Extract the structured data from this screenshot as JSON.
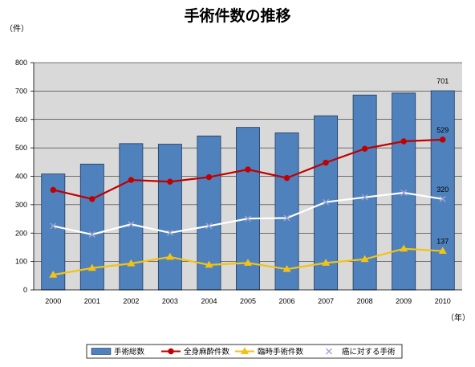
{
  "chart_data": {
    "type": "bar",
    "title": "手術件数の推移",
    "ylabel": "（件）",
    "xlabel": "（年）",
    "ylim": [
      0,
      800
    ],
    "yticks": [
      0,
      100,
      200,
      300,
      400,
      500,
      600,
      700,
      800
    ],
    "categories": [
      "2000",
      "2001",
      "2002",
      "2003",
      "2004",
      "2005",
      "2006",
      "2007",
      "2008",
      "2009",
      "2010"
    ],
    "grid": true,
    "legend_position": "bottom",
    "series": [
      {
        "name": "手術総数",
        "type": "bar",
        "color": "#4f81bd",
        "values": [
          408,
          443,
          515,
          513,
          542,
          572,
          553,
          613,
          686,
          693,
          701
        ],
        "data_labels": {
          "10": "701"
        }
      },
      {
        "name": "全身麻酔件数",
        "type": "line",
        "color": "#c00000",
        "marker": "circle",
        "values": [
          352,
          320,
          387,
          381,
          397,
          424,
          394,
          448,
          497,
          523,
          529
        ],
        "data_labels": {
          "10": "529"
        }
      },
      {
        "name": "臨時手術件数",
        "type": "line",
        "color": "#f2c314",
        "marker": "triangle",
        "values": [
          53,
          77,
          93,
          116,
          88,
          95,
          73,
          95,
          108,
          145,
          137
        ],
        "data_labels": {
          "10": "137"
        }
      },
      {
        "name": "癌に対する手術",
        "type": "line",
        "color": "#ffffff",
        "marker": "x",
        "values": [
          225,
          195,
          231,
          201,
          225,
          251,
          253,
          309,
          326,
          342,
          320
        ],
        "data_labels": {
          "10": "320"
        }
      }
    ]
  }
}
